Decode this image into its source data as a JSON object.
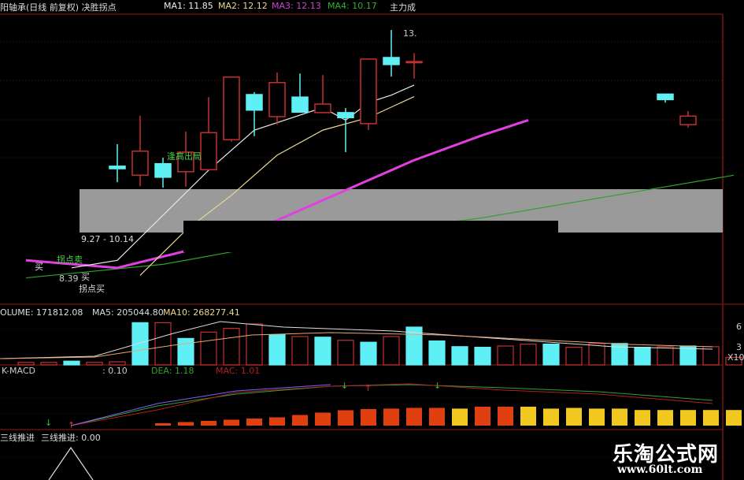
{
  "header": {
    "title": "阳轴承(日线 前复权) 决胜拐点",
    "ma1": "MA1: 11.85",
    "ma2": "MA2: 12.12",
    "ma3": "MA3: 12.13",
    "ma4": "MA4: 10.17",
    "right_label": "主力成"
  },
  "colors": {
    "up": "#c23030",
    "down": "#5ff0f5",
    "ma1": "#e8e8e8",
    "ma2": "#e8d890",
    "ma3": "#e040e0",
    "ma4": "#30a030",
    "grid": "#5a1010"
  },
  "annotations": {
    "high_price": "13.",
    "sell_hint": "逢高出局",
    "range": "9.27 - 10.14",
    "low_price": "8.39",
    "turn_sell": "拐点卖",
    "buy": "买",
    "buy2": "买",
    "turn_buy": "拐点买"
  },
  "volume_panel": {
    "volume": "OLUME: 171812.08",
    "ma5": "MA5: 205044.80",
    "ma10": "MA10: 268277.41",
    "axis": [
      "6",
      "3",
      "X10"
    ]
  },
  "macd_panel": {
    "title": "K-MACD",
    "dif": ": 0.10",
    "dea": "DEA: 1.18",
    "macd": "MAC: 1.01"
  },
  "bottom_panel": {
    "label1": "三线推进",
    "label2": "三线推进: 0.00"
  },
  "watermark": {
    "name": "乐淘公式网",
    "url": "www.60lt.com"
  },
  "chart_data": {
    "type": "candlestick",
    "price_range": [
      8.39,
      13.3
    ],
    "candles": [
      {
        "i": 4,
        "o": 10.58,
        "h": 11.02,
        "l": 10.26,
        "c": 10.53
      },
      {
        "i": 5,
        "o": 10.4,
        "h": 11.59,
        "l": 10.18,
        "c": 10.88
      },
      {
        "i": 6,
        "o": 10.63,
        "h": 10.75,
        "l": 10.15,
        "c": 10.36
      },
      {
        "i": 7,
        "o": 10.47,
        "h": 11.27,
        "l": 10.17,
        "c": 10.86
      },
      {
        "i": 8,
        "o": 10.51,
        "h": 11.96,
        "l": 10.5,
        "c": 11.25
      },
      {
        "i": 9,
        "o": 11.11,
        "h": 12.36,
        "l": 11.07,
        "c": 12.36
      },
      {
        "i": 10,
        "o": 12.01,
        "h": 12.06,
        "l": 11.18,
        "c": 11.7
      },
      {
        "i": 11,
        "o": 11.57,
        "h": 12.45,
        "l": 11.41,
        "c": 12.25
      },
      {
        "i": 12,
        "o": 11.96,
        "h": 12.43,
        "l": 11.66,
        "c": 11.66
      },
      {
        "i": 13,
        "o": 11.65,
        "h": 12.4,
        "l": 11.65,
        "c": 11.82
      },
      {
        "i": 14,
        "o": 11.65,
        "h": 11.74,
        "l": 10.86,
        "c": 11.55
      },
      {
        "i": 15,
        "o": 11.43,
        "h": 12.72,
        "l": 11.3,
        "c": 12.72
      },
      {
        "i": 16,
        "o": 12.75,
        "h": 13.3,
        "l": 12.37,
        "c": 12.61
      },
      {
        "i": 17,
        "o": 12.67,
        "h": 12.84,
        "l": 12.33,
        "c": 12.67
      },
      {
        "i": 28,
        "o": 12.02,
        "h": 12.02,
        "l": 11.85,
        "c": 11.91
      },
      {
        "i": 29,
        "o": 11.41,
        "h": 11.68,
        "l": 11.35,
        "c": 11.58
      }
    ],
    "ma1": [
      [
        2,
        8.55
      ],
      [
        4,
        8.7
      ],
      [
        6,
        9.6
      ],
      [
        8,
        10.5
      ],
      [
        10,
        11.3
      ],
      [
        12,
        11.6
      ],
      [
        13,
        11.75
      ],
      [
        14,
        11.5
      ],
      [
        15,
        11.85
      ],
      [
        16,
        12.0
      ],
      [
        17,
        12.2
      ]
    ],
    "ma2": [
      [
        5,
        8.4
      ],
      [
        7,
        9.3
      ],
      [
        9,
        10.0
      ],
      [
        11,
        10.8
      ],
      [
        13,
        11.3
      ],
      [
        15,
        11.55
      ],
      [
        17,
        11.97
      ]
    ],
    "ma3": [
      [
        0,
        8.7
      ],
      [
        4,
        8.55
      ],
      [
        8,
        9.0
      ],
      [
        11,
        9.5
      ],
      [
        14,
        10.1
      ],
      [
        17,
        10.7
      ],
      [
        20,
        11.2
      ],
      [
        22,
        11.5
      ]
    ],
    "ma4": [
      [
        0,
        8.35
      ],
      [
        6,
        8.62
      ],
      [
        10,
        8.95
      ],
      [
        20,
        9.55
      ],
      [
        31,
        10.4
      ]
    ],
    "volume": [
      0.4,
      0.4,
      0.6,
      0.4,
      0.5,
      6.7,
      6.7,
      4.2,
      5.2,
      5.8,
      6.5,
      4.8,
      4.5,
      4.4,
      3.9,
      3.6,
      4.5,
      6.0,
      3.8,
      2.9,
      2.8,
      3.0,
      3.3,
      3.3,
      2.8,
      3.4,
      3.4,
      2.8,
      2.9,
      3.0,
      2.9,
      1.2,
      1.4
    ],
    "volume_up": [
      1,
      1,
      0,
      1,
      1,
      0,
      1,
      0,
      1,
      1,
      1,
      0,
      1,
      0,
      1,
      0,
      1,
      0,
      0,
      0,
      0,
      1,
      1,
      0,
      1,
      1,
      0,
      0,
      1,
      0,
      1,
      1,
      1
    ],
    "macd": [
      0.1,
      0.15,
      0.2,
      0.25,
      0.3,
      0.35,
      0.45,
      0.55,
      0.65,
      0.7,
      0.72,
      0.75,
      0.75,
      0.72,
      0.8,
      0.8,
      0.8,
      0.72,
      0.75,
      0.72,
      0.72,
      0.66,
      0.66,
      0.66,
      0.66,
      0.66,
      0.66,
      0.6,
      0.52,
      0.4,
      0.4
    ],
    "macd_color": [
      "r",
      "r",
      "r",
      "r",
      "r",
      "r",
      "r",
      "r",
      "r",
      "r",
      "r",
      "r",
      "r",
      "y",
      "r",
      "r",
      "y",
      "y",
      "y",
      "y",
      "y",
      "y",
      "y",
      "y",
      "y",
      "y",
      "y",
      "y",
      "y",
      "y",
      "y"
    ]
  }
}
